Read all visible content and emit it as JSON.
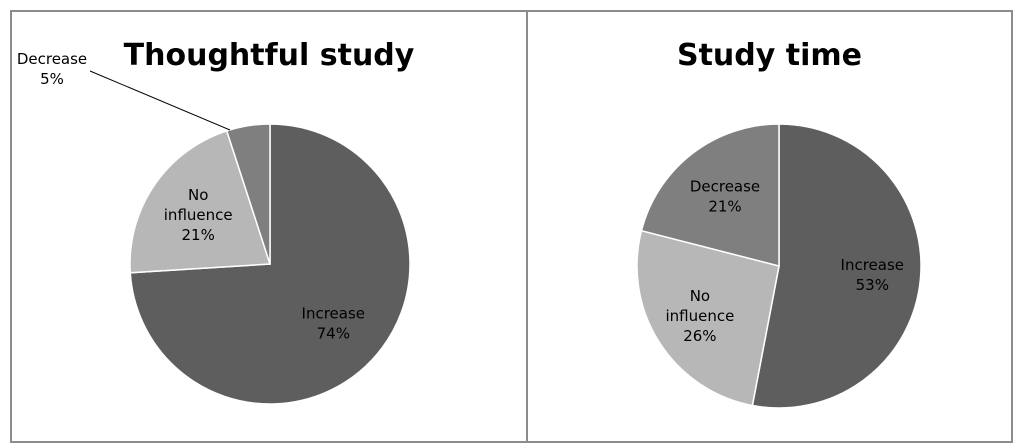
{
  "chart_data": [
    {
      "type": "pie",
      "title": "Thoughtful study",
      "categories": [
        "Increase",
        "No influence",
        "Decrease"
      ],
      "values": [
        74,
        21,
        5
      ],
      "labels": [
        "74%",
        "21%",
        "5%"
      ],
      "colors": [
        "#5e5e5e",
        "#b7b7b7",
        "#7f7f7f"
      ]
    },
    {
      "type": "pie",
      "title": "Study time",
      "categories": [
        "Increase",
        "No influence",
        "Decrease"
      ],
      "values": [
        53,
        26,
        21
      ],
      "labels": [
        "53%",
        "26%",
        "21%"
      ],
      "colors": [
        "#5e5e5e",
        "#b7b7b7",
        "#7f7f7f"
      ]
    }
  ]
}
